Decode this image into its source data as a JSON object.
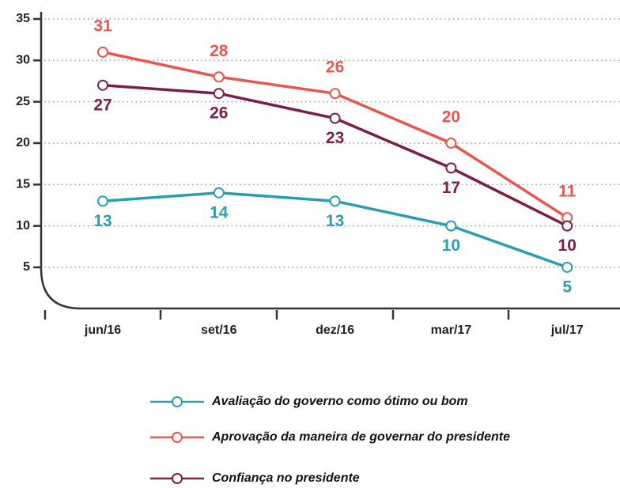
{
  "chart_data": {
    "type": "line",
    "categories": [
      "jun/16",
      "set/16",
      "dez/16",
      "mar/17",
      "jul/17"
    ],
    "series": [
      {
        "name": "Avaliação do governo como ótimo ou bom",
        "color": "#2b9db0",
        "values": [
          13,
          14,
          13,
          10,
          5
        ]
      },
      {
        "name": "Aprovação da maneira de governar do presidente",
        "color": "#e8574f",
        "values": [
          31,
          28,
          26,
          20,
          11
        ]
      },
      {
        "name": "Confiança no presidente",
        "color": "#7b1e4b",
        "values": [
          27,
          26,
          23,
          17,
          10
        ]
      }
    ],
    "ylim": [
      0,
      35
    ],
    "yticks": [
      5,
      10,
      15,
      20,
      25,
      30,
      35
    ],
    "grid": true,
    "legend": "bottom"
  }
}
